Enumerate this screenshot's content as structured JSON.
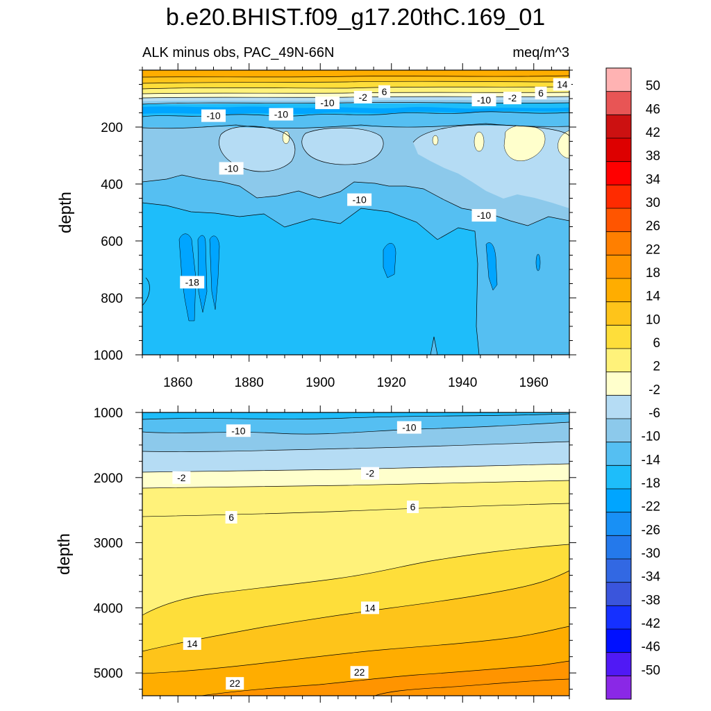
{
  "title": "b.e20.BHIST.f09_g17.20thC.169_01",
  "chart_data": [
    {
      "type": "heatmap",
      "panel": "upper",
      "subtitle_left": "ALK minus obs, PAC_49N-66N",
      "subtitle_right": "meq/m^3",
      "ylabel": "depth",
      "xlim": [
        1850,
        1970
      ],
      "ylim": [
        1000,
        0
      ],
      "xticks": [
        "1860",
        "1880",
        "1900",
        "1920",
        "1940",
        "1960"
      ],
      "yticks": [
        "200",
        "400",
        "600",
        "800",
        "1000"
      ],
      "ytick_values": [
        200,
        400,
        600,
        800,
        1000
      ],
      "contour_labels": [
        {
          "text": "-2",
          "x": 1912,
          "y": 95
        },
        {
          "text": "6",
          "x": 1918,
          "y": 75
        },
        {
          "text": "-10",
          "x": 1902,
          "y": 115
        },
        {
          "text": "-10",
          "x": 1870,
          "y": 160
        },
        {
          "text": "-10",
          "x": 1889,
          "y": 155
        },
        {
          "text": "-10",
          "x": 1875,
          "y": 345
        },
        {
          "text": "-10",
          "x": 1911,
          "y": 455
        },
        {
          "text": "-10",
          "x": 1946,
          "y": 105
        },
        {
          "text": "-2",
          "x": 1954,
          "y": 98
        },
        {
          "text": "6",
          "x": 1962,
          "y": 80
        },
        {
          "text": "14",
          "x": 1968,
          "y": 50
        },
        {
          "text": "-10",
          "x": 1946,
          "y": 510
        },
        {
          "text": "-18",
          "x": 1864,
          "y": 745
        }
      ]
    },
    {
      "type": "heatmap",
      "panel": "lower",
      "ylabel": "depth",
      "xlim": [
        1850,
        1970
      ],
      "ylim": [
        5350,
        1000
      ],
      "yticks": [
        "1000",
        "2000",
        "3000",
        "4000",
        "5000"
      ],
      "ytick_values": [
        1000,
        2000,
        3000,
        4000,
        5000
      ],
      "contour_labels": [
        {
          "text": "-10",
          "x": 1877,
          "y": 1280
        },
        {
          "text": "-10",
          "x": 1925,
          "y": 1230
        },
        {
          "text": "-2",
          "x": 1861,
          "y": 2000
        },
        {
          "text": "-2",
          "x": 1914,
          "y": 1935
        },
        {
          "text": "6",
          "x": 1875,
          "y": 2610
        },
        {
          "text": "6",
          "x": 1926,
          "y": 2450
        },
        {
          "text": "14",
          "x": 1914,
          "y": 4000
        },
        {
          "text": "14",
          "x": 1864,
          "y": 4550
        },
        {
          "text": "22",
          "x": 1911,
          "y": 4990
        },
        {
          "text": "22",
          "x": 1876,
          "y": 5160
        }
      ]
    }
  ],
  "colorbar": {
    "labels": [
      "50",
      "46",
      "42",
      "38",
      "34",
      "30",
      "26",
      "22",
      "18",
      "14",
      "10",
      "6",
      "2",
      "-2",
      "-6",
      "-10",
      "-14",
      "-18",
      "-22",
      "-26",
      "-30",
      "-34",
      "-38",
      "-42",
      "-46",
      "-50"
    ],
    "colors": [
      "#ffb3b3",
      "#e85555",
      "#cc1111",
      "#dd0000",
      "#ff0000",
      "#ff2b00",
      "#ff5500",
      "#ff7f00",
      "#ff9400",
      "#ffad00",
      "#fec41a",
      "#fede3a",
      "#fff27a",
      "#ffffcc",
      "#b5dcf4",
      "#8cc9eb",
      "#55bff2",
      "#1ebdfa",
      "#00a5ff",
      "#1890f5",
      "#2479eb",
      "#3268e3",
      "#3a55dc",
      "#1530ff",
      "#0010ff",
      "#5019f5",
      "#8a28e6"
    ]
  }
}
